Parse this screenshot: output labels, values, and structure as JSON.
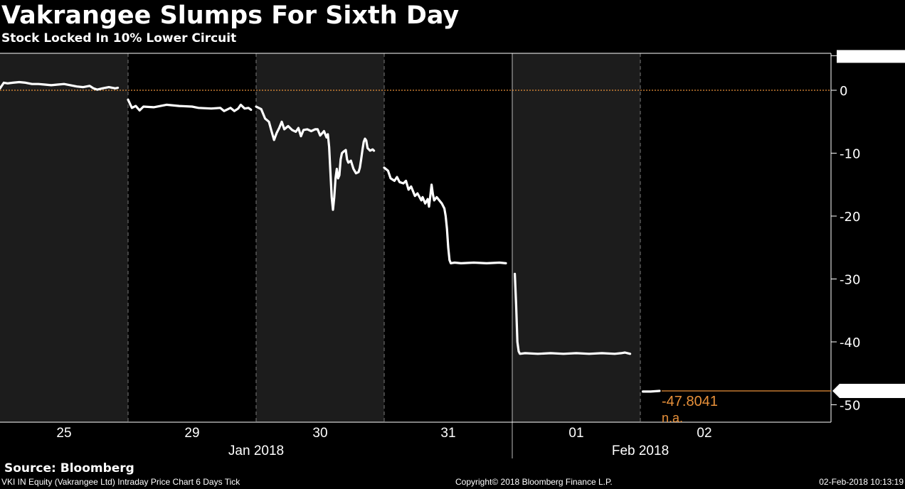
{
  "chart_data": {
    "type": "line",
    "title": "Vakrangee Slumps For Sixth Day",
    "subtitle": "Stock Locked In 10% Lower Circuit",
    "xlabel": "",
    "ylabel": "",
    "ylim": [
      -52.5,
      5.7163
    ],
    "yticks": [
      0,
      -10,
      -20,
      -30,
      -40,
      -50
    ],
    "ytick_labels": [
      "0",
      "-10",
      "-20",
      "-30",
      "-40",
      "-50"
    ],
    "x_ticks": [
      "25",
      "29",
      "30",
      "31",
      "01",
      "02"
    ],
    "x_months": [
      "Jan 2018",
      "Feb 2018"
    ],
    "grid": false,
    "shaded_days": [
      0,
      2,
      4
    ],
    "reference_line": {
      "value": 0,
      "color": "#e8913a"
    },
    "top_marker": "5.7163",
    "last_value_label": "-47.8041",
    "last_value_annotation": "-47.8041",
    "na_annotation": "n.a.",
    "series": [
      {
        "color": "#ffffff",
        "days": [
          {
            "day": "25",
            "points": [
              [
                0.0,
                0.3
              ],
              [
                0.03,
                1.2
              ],
              [
                0.06,
                1.1
              ],
              [
                0.1,
                1.2
              ],
              [
                0.15,
                1.3
              ],
              [
                0.2,
                1.2
              ],
              [
                0.25,
                1.0
              ],
              [
                0.3,
                1.0
              ],
              [
                0.35,
                0.9
              ],
              [
                0.4,
                0.8
              ],
              [
                0.45,
                0.9
              ],
              [
                0.5,
                1.0
              ],
              [
                0.55,
                0.8
              ],
              [
                0.6,
                0.6
              ],
              [
                0.65,
                0.5
              ],
              [
                0.7,
                0.7
              ],
              [
                0.73,
                0.3
              ],
              [
                0.76,
                0.1
              ],
              [
                0.8,
                0.3
              ],
              [
                0.85,
                0.5
              ],
              [
                0.9,
                0.3
              ],
              [
                0.92,
                0.4
              ]
            ]
          },
          {
            "day": "29",
            "points": [
              [
                0.0,
                -1.5
              ],
              [
                0.03,
                -2.8
              ],
              [
                0.06,
                -2.5
              ],
              [
                0.09,
                -3.2
              ],
              [
                0.12,
                -2.6
              ],
              [
                0.2,
                -2.7
              ],
              [
                0.3,
                -2.3
              ],
              [
                0.4,
                -2.5
              ],
              [
                0.5,
                -2.6
              ],
              [
                0.55,
                -2.8
              ],
              [
                0.65,
                -2.9
              ],
              [
                0.72,
                -2.8
              ],
              [
                0.75,
                -3.3
              ],
              [
                0.8,
                -2.8
              ],
              [
                0.83,
                -3.3
              ],
              [
                0.86,
                -2.9
              ],
              [
                0.88,
                -2.3
              ],
              [
                0.91,
                -2.9
              ],
              [
                0.94,
                -2.8
              ],
              [
                0.96,
                -3.1
              ]
            ]
          },
          {
            "day": "30",
            "points": [
              [
                0.0,
                -2.6
              ],
              [
                0.04,
                -3.0
              ],
              [
                0.07,
                -4.5
              ],
              [
                0.1,
                -5.0
              ],
              [
                0.12,
                -6.5
              ],
              [
                0.14,
                -7.9
              ],
              [
                0.16,
                -6.8
              ],
              [
                0.18,
                -6.0
              ],
              [
                0.2,
                -5.0
              ],
              [
                0.22,
                -6.2
              ],
              [
                0.25,
                -5.7
              ],
              [
                0.28,
                -6.3
              ],
              [
                0.31,
                -6.6
              ],
              [
                0.33,
                -6.0
              ],
              [
                0.35,
                -7.3
              ],
              [
                0.37,
                -6.3
              ],
              [
                0.4,
                -6.2
              ],
              [
                0.43,
                -6.5
              ],
              [
                0.46,
                -6.2
              ],
              [
                0.48,
                -6.2
              ],
              [
                0.5,
                -7.2
              ],
              [
                0.53,
                -6.5
              ],
              [
                0.55,
                -7.5
              ],
              [
                0.56,
                -7.0
              ],
              [
                0.57,
                -9.0
              ],
              [
                0.58,
                -13.0
              ],
              [
                0.59,
                -17.0
              ],
              [
                0.6,
                -19.0
              ],
              [
                0.61,
                -17.0
              ],
              [
                0.62,
                -14.0
              ],
              [
                0.63,
                -12.5
              ],
              [
                0.64,
                -14.0
              ],
              [
                0.65,
                -13.5
              ],
              [
                0.66,
                -11.0
              ],
              [
                0.67,
                -10.0
              ],
              [
                0.68,
                -9.8
              ],
              [
                0.7,
                -9.5
              ],
              [
                0.71,
                -11.0
              ],
              [
                0.72,
                -11.5
              ],
              [
                0.74,
                -11.2
              ],
              [
                0.76,
                -12.5
              ],
              [
                0.78,
                -13.2
              ],
              [
                0.8,
                -13.0
              ],
              [
                0.81,
                -12.3
              ],
              [
                0.82,
                -11.0
              ],
              [
                0.83,
                -9.5
              ],
              [
                0.84,
                -8.2
              ],
              [
                0.85,
                -7.7
              ],
              [
                0.86,
                -8.0
              ],
              [
                0.87,
                -9.2
              ],
              [
                0.89,
                -9.6
              ],
              [
                0.91,
                -9.4
              ],
              [
                0.92,
                -9.6
              ]
            ]
          },
          {
            "day": "31",
            "points": [
              [
                0.0,
                -12.3
              ],
              [
                0.03,
                -12.8
              ],
              [
                0.05,
                -14.0
              ],
              [
                0.08,
                -14.4
              ],
              [
                0.1,
                -13.8
              ],
              [
                0.12,
                -14.6
              ],
              [
                0.15,
                -14.8
              ],
              [
                0.17,
                -14.4
              ],
              [
                0.19,
                -15.8
              ],
              [
                0.21,
                -15.3
              ],
              [
                0.24,
                -16.8
              ],
              [
                0.26,
                -16.4
              ],
              [
                0.29,
                -17.5
              ],
              [
                0.3,
                -17.0
              ],
              [
                0.32,
                -18.0
              ],
              [
                0.34,
                -17.3
              ],
              [
                0.35,
                -18.5
              ],
              [
                0.36,
                -16.8
              ],
              [
                0.37,
                -15.0
              ],
              [
                0.38,
                -16.5
              ],
              [
                0.39,
                -17.5
              ],
              [
                0.41,
                -17.0
              ],
              [
                0.43,
                -17.5
              ],
              [
                0.45,
                -18.0
              ],
              [
                0.47,
                -18.8
              ],
              [
                0.48,
                -20.0
              ],
              [
                0.49,
                -22.0
              ],
              [
                0.5,
                -25.0
              ],
              [
                0.51,
                -27.0
              ],
              [
                0.52,
                -27.5
              ],
              [
                0.55,
                -27.4
              ],
              [
                0.6,
                -27.5
              ],
              [
                0.7,
                -27.4
              ],
              [
                0.8,
                -27.5
              ],
              [
                0.9,
                -27.4
              ],
              [
                0.95,
                -27.5
              ]
            ]
          },
          {
            "day": "01",
            "points": [
              [
                0.02,
                -29.2
              ],
              [
                0.03,
                -34.0
              ],
              [
                0.04,
                -40.0
              ],
              [
                0.05,
                -41.5
              ],
              [
                0.06,
                -41.9
              ],
              [
                0.1,
                -41.8
              ],
              [
                0.2,
                -41.9
              ],
              [
                0.3,
                -41.8
              ],
              [
                0.4,
                -41.9
              ],
              [
                0.5,
                -41.8
              ],
              [
                0.6,
                -41.9
              ],
              [
                0.7,
                -41.8
              ],
              [
                0.8,
                -41.9
              ],
              [
                0.85,
                -41.8
              ],
              [
                0.88,
                -41.7
              ],
              [
                0.9,
                -41.8
              ],
              [
                0.92,
                -41.9
              ]
            ]
          },
          {
            "day": "02",
            "points": [
              [
                0.02,
                -47.9
              ],
              [
                0.08,
                -47.9
              ],
              [
                0.15,
                -47.8
              ]
            ]
          }
        ]
      }
    ]
  },
  "footer": {
    "source": "Source: Bloomberg",
    "left": "VKI IN Equity (Vakrangee Ltd) Intraday Price Chart 6 Days  Tick",
    "center": "Copyright© 2018 Bloomberg Finance L.P.",
    "right": "02-Feb-2018 10:13:19"
  }
}
